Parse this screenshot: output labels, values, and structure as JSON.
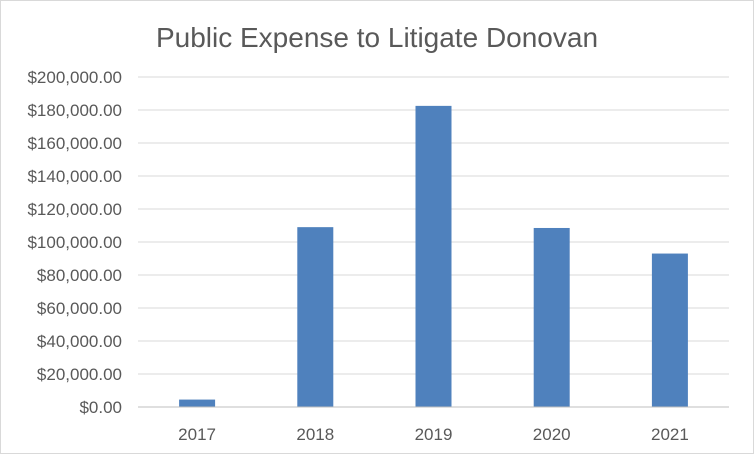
{
  "chart_data": {
    "type": "bar",
    "title": "Public Expense to Litigate Donovan",
    "xlabel": "",
    "ylabel": "",
    "categories": [
      "2017",
      "2018",
      "2019",
      "2020",
      "2021"
    ],
    "values": [
      4500,
      109000,
      182500,
      108500,
      93000
    ],
    "ylim": [
      0,
      200000
    ],
    "y_ticks": [
      0,
      20000,
      40000,
      60000,
      80000,
      100000,
      120000,
      140000,
      160000,
      180000,
      200000
    ],
    "y_tick_labels": [
      "$0.00",
      "$20,000.00",
      "$40,000.00",
      "$60,000.00",
      "$80,000.00",
      "$100,000.00",
      "$120,000.00",
      "$140,000.00",
      "$160,000.00",
      "$180,000.00",
      "$200,000.00"
    ],
    "grid": true,
    "legend": "none",
    "bar_color": "#4f81bd"
  }
}
